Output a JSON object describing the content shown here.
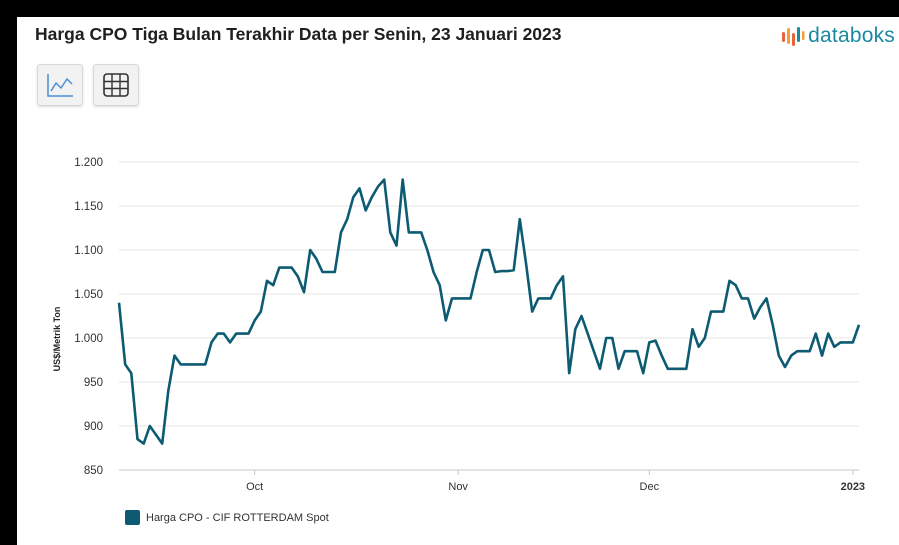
{
  "header": {
    "title": "Harga CPO Tiga Bulan Terakhir Data per Senin, 23 Januari 2023",
    "brand": "databoks"
  },
  "toolbar": {
    "chart_view_icon": "line-chart-icon",
    "table_view_icon": "table-grid-icon"
  },
  "colors": {
    "series": "#0d5b73",
    "brand": "#1a8a9e",
    "grid": "#e6e6e6"
  },
  "chart_data": {
    "type": "line",
    "title": "Harga CPO Tiga Bulan Terakhir Data per Senin, 23 Januari 2023",
    "xlabel": "",
    "ylabel": "US$/Metrik Ton",
    "ylim": [
      850,
      1200
    ],
    "yticks": [
      850,
      900,
      950,
      1000,
      1050,
      1100,
      1150,
      1200
    ],
    "ytick_labels": [
      "850",
      "900",
      "950",
      "1.000",
      "1.050",
      "1.100",
      "1.150",
      "1.200"
    ],
    "xticks": [
      {
        "label": "Oct",
        "index": 22,
        "bold": false
      },
      {
        "label": "Nov",
        "index": 55,
        "bold": false
      },
      {
        "label": "Dec",
        "index": 86,
        "bold": false
      },
      {
        "label": "2023",
        "index": 119,
        "bold": true
      }
    ],
    "grid": true,
    "legend_placement": "bottom-left",
    "series": [
      {
        "name": "Harga CPO - CIF ROTTERDAM Spot",
        "values": [
          1040,
          970,
          960,
          885,
          880,
          900,
          890,
          880,
          940,
          980,
          970,
          970,
          970,
          970,
          970,
          995,
          1005,
          1005,
          995,
          1005,
          1005,
          1005,
          1020,
          1030,
          1065,
          1060,
          1080,
          1080,
          1080,
          1070,
          1052,
          1100,
          1090,
          1075,
          1075,
          1075,
          1120,
          1135,
          1160,
          1170,
          1145,
          1160,
          1172,
          1180,
          1120,
          1105,
          1180,
          1120,
          1120,
          1120,
          1100,
          1075,
          1060,
          1020,
          1045,
          1045,
          1045,
          1045,
          1075,
          1100,
          1100,
          1075,
          1076,
          1076,
          1077,
          1135,
          1085,
          1030,
          1045,
          1045,
          1045,
          1060,
          1070,
          960,
          1010,
          1025,
          1005,
          985,
          965,
          1000,
          1000,
          965,
          985,
          985,
          985,
          960,
          995,
          997,
          980,
          965,
          965,
          965,
          965,
          1010,
          990,
          1000,
          1030,
          1030,
          1030,
          1065,
          1060,
          1045,
          1045,
          1022,
          1035,
          1045,
          1015,
          980,
          967,
          980,
          985,
          985,
          985,
          1005,
          980,
          1005,
          990,
          995,
          995,
          995,
          1015
        ]
      }
    ]
  }
}
